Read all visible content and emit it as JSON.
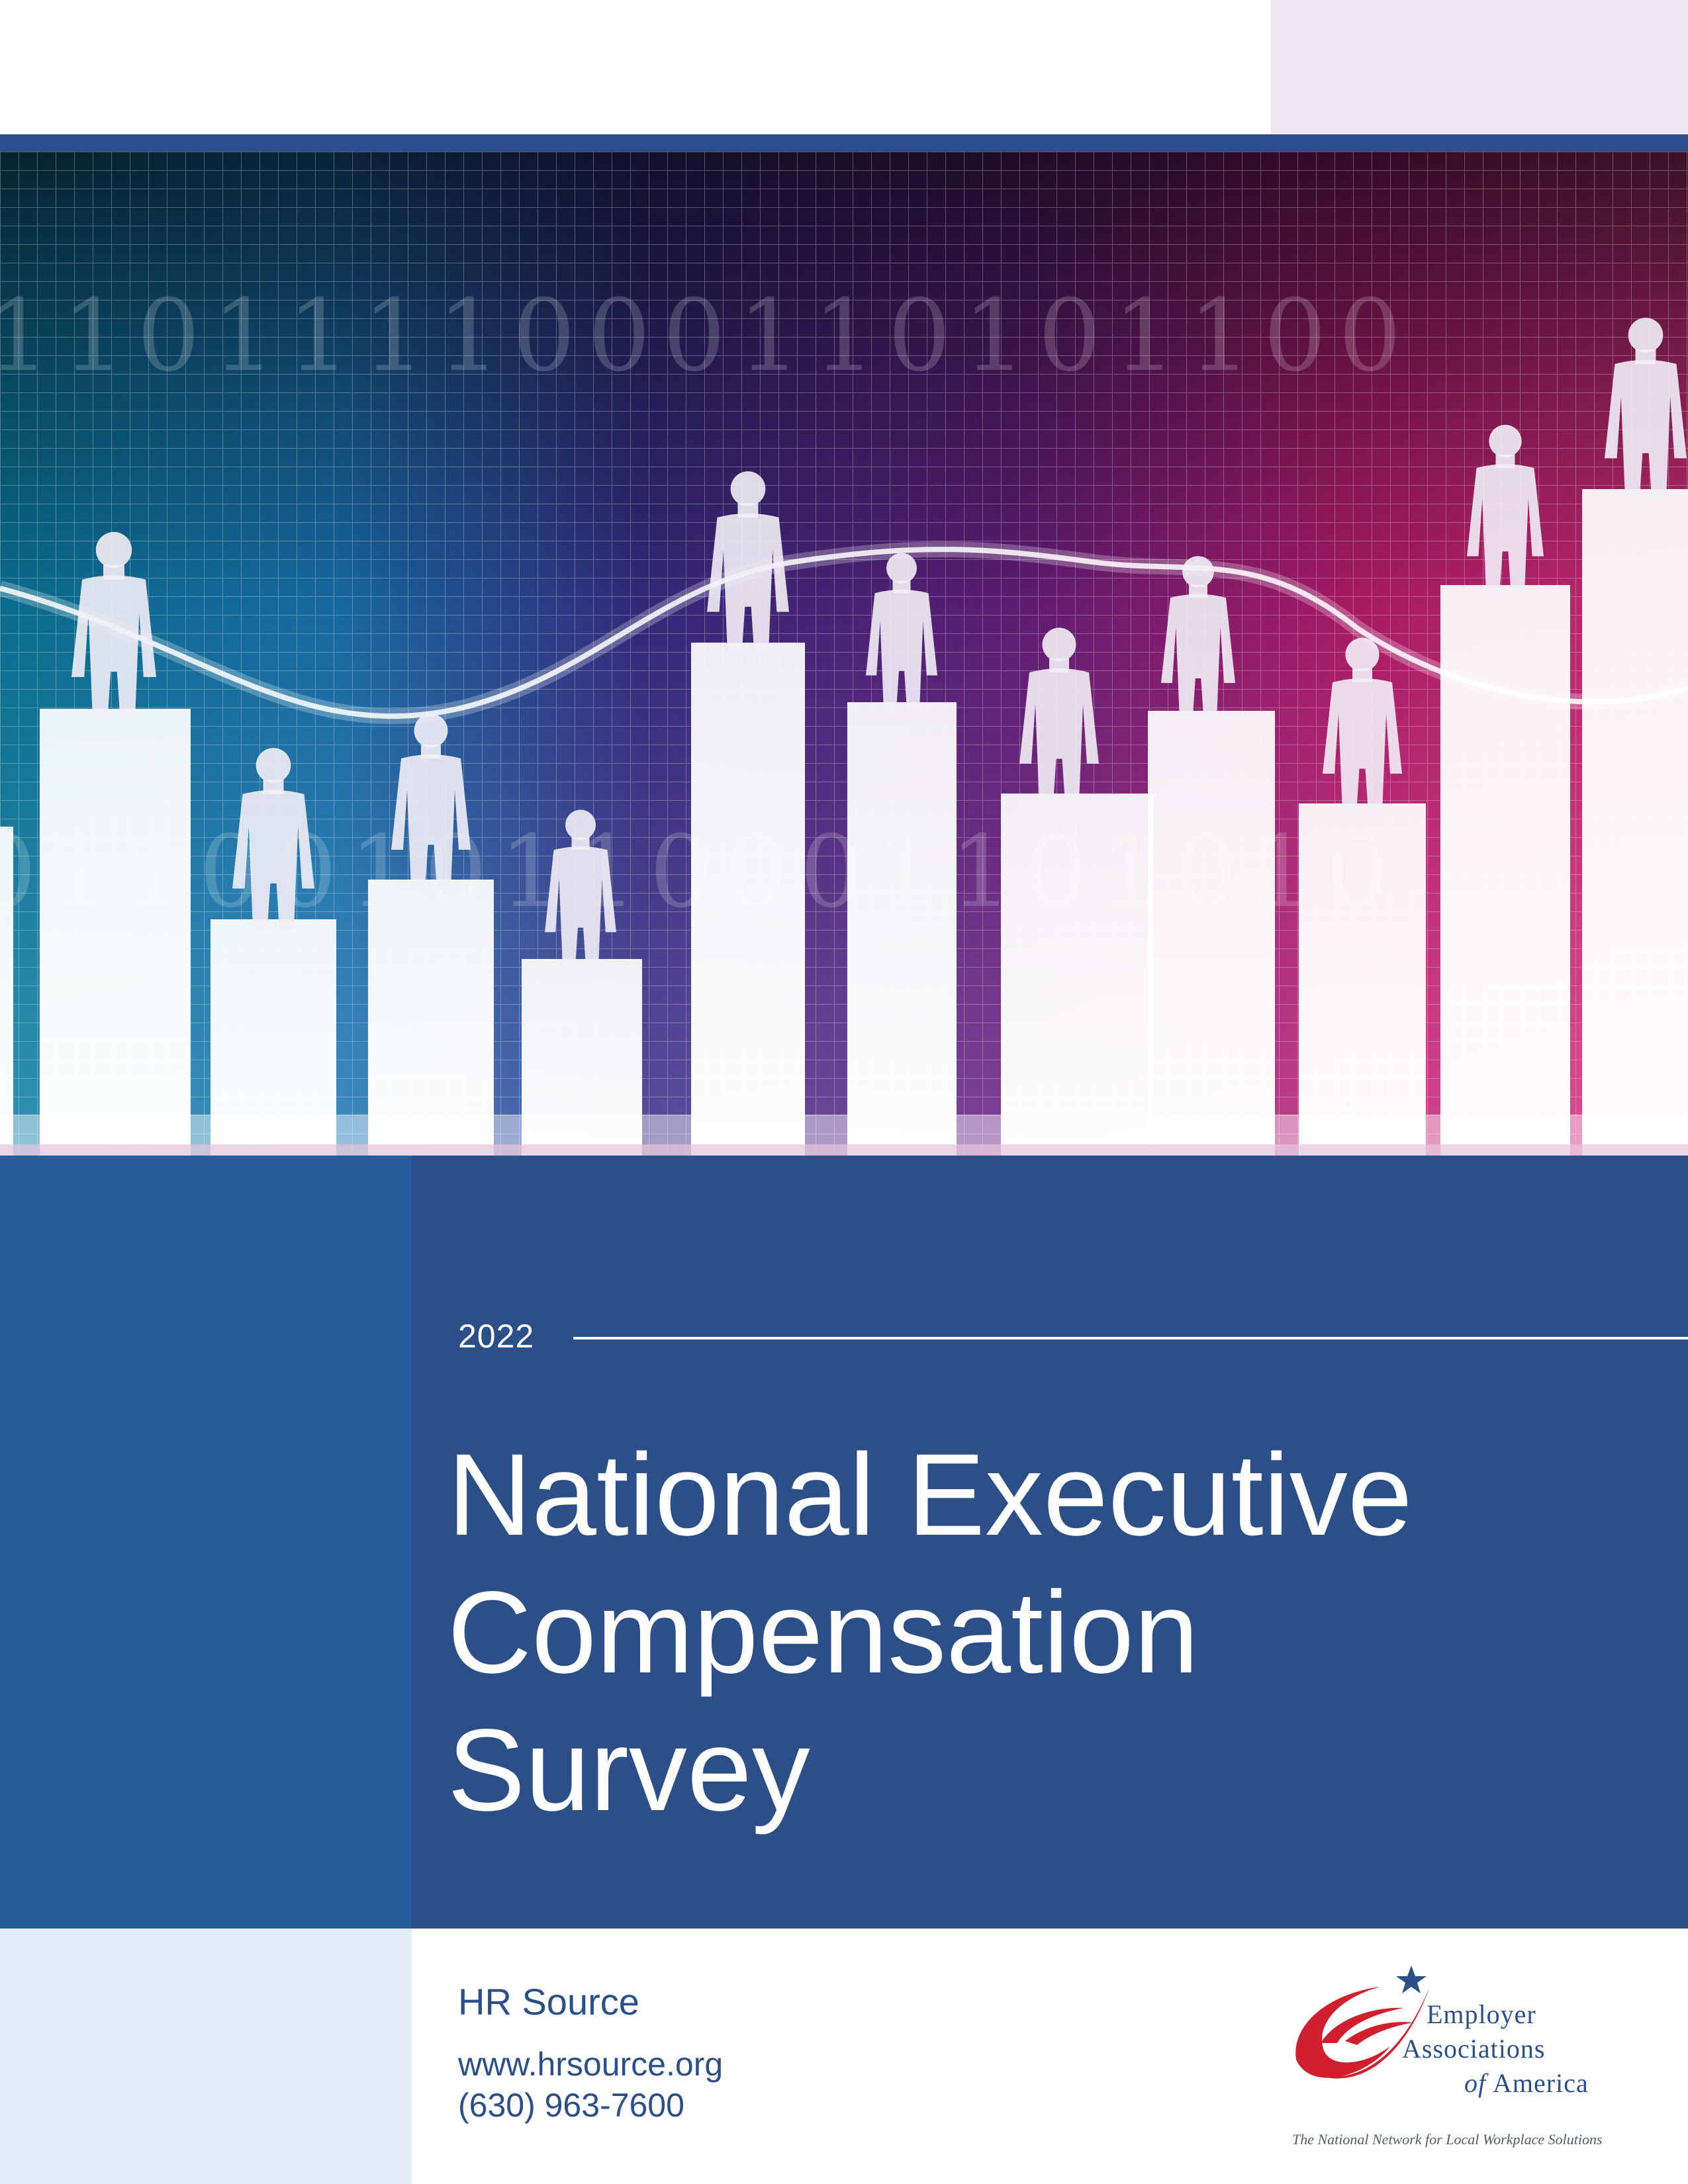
{
  "cover": {
    "year": "2022",
    "title_lines": [
      "National Executive",
      "Compensation",
      "Survey"
    ]
  },
  "publisher": {
    "name": "HR Source",
    "url": "www.hrsource.org",
    "phone": "(630) 963-7600"
  },
  "logo": {
    "line1": "Employer",
    "line2": "Associations",
    "line3_prefix": "of",
    "line3": "America",
    "tagline": "The National Network for Local Workplace Solutions",
    "icon": "eaa-swoosh-star-logo"
  },
  "hero": {
    "digits_row1": "1101111000110101100",
    "digits_row2": "0110010110001101010",
    "icon": "people-on-bar-chart-illustration"
  },
  "colors": {
    "navy": "#2d4f88",
    "blue": "#245c9c",
    "light_blue": "#e3edf8",
    "lavender": "#ece6f3",
    "logo_red": "#d0202e"
  }
}
